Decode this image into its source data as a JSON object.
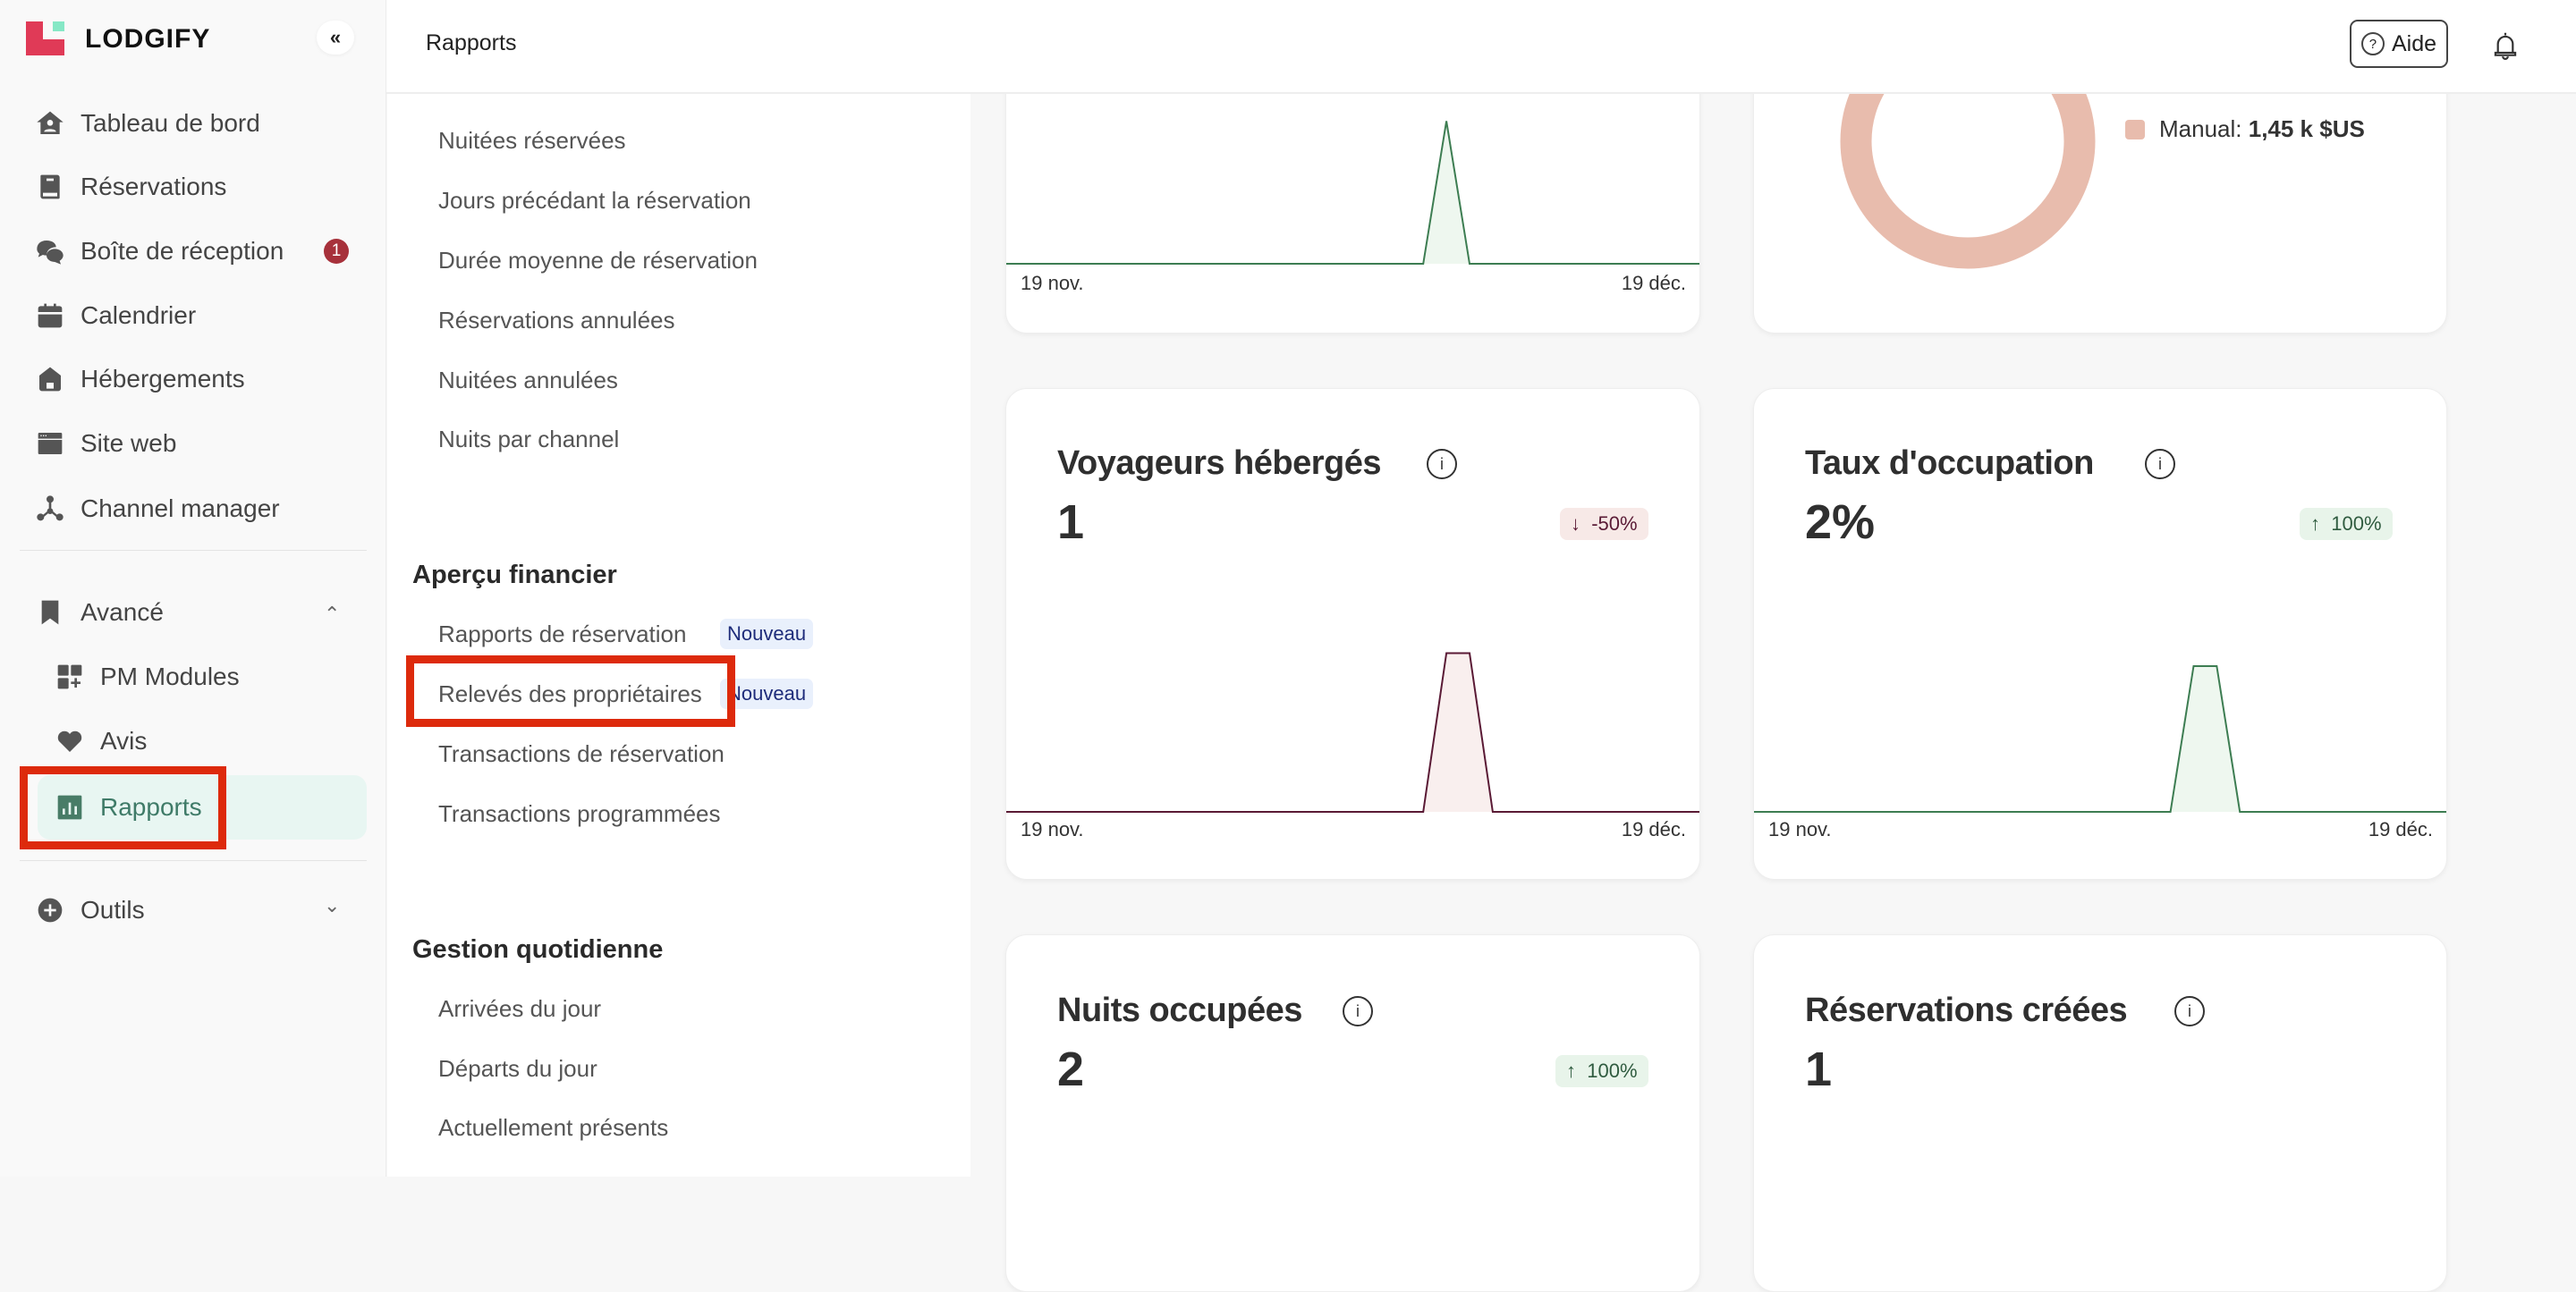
{
  "brand": {
    "name": "LODGIFY",
    "colors": {
      "red": "#e03a57",
      "mint": "#86e8c6"
    }
  },
  "sidebar": {
    "collapse_label": "«",
    "items": [
      {
        "label": "Tableau de bord",
        "icon": "home-icon"
      },
      {
        "label": "Réservations",
        "icon": "book-icon"
      },
      {
        "label": "Boîte de réception",
        "icon": "chat-icon",
        "badge": "1"
      },
      {
        "label": "Calendrier",
        "icon": "calendar-icon"
      },
      {
        "label": "Hébergements",
        "icon": "house-icon"
      },
      {
        "label": "Site web",
        "icon": "browser-icon"
      },
      {
        "label": "Channel manager",
        "icon": "network-icon"
      }
    ],
    "advanced": {
      "label": "Avancé",
      "chevron": "⌃",
      "items": [
        {
          "label": "PM Modules"
        },
        {
          "label": "Avis"
        },
        {
          "label": "Rapports",
          "active": true
        }
      ]
    },
    "tools": {
      "label": "Outils",
      "chevron": "⌄"
    }
  },
  "header": {
    "title": "Rapports",
    "help_label": "Aide",
    "help_icon": "?"
  },
  "submenu": {
    "items_top": [
      "Nuitées réservées",
      "Jours précédant la réservation",
      "Durée moyenne de réservation",
      "Réservations annulées",
      "Nuitées annulées",
      "Nuits par channel"
    ],
    "financial": {
      "title": "Aperçu financier",
      "items": [
        {
          "label": "Rapports de réservation",
          "badge": "Nouveau"
        },
        {
          "label": "Relevés des propriétaires",
          "badge": "Nouveau"
        },
        {
          "label": "Transactions de réservation"
        },
        {
          "label": "Transactions programmées"
        }
      ]
    },
    "daily": {
      "title": "Gestion quotidienne",
      "items": [
        "Arrivées du jour",
        "Départs du jour",
        "Actuellement présents"
      ]
    }
  },
  "cards": {
    "top_left": {
      "x_start": "19 nov.",
      "x_end": "19 déc."
    },
    "donut": {
      "legend_label": "Manual:",
      "legend_value": "1,45 k $US"
    },
    "voyageurs": {
      "title": "Voyageurs hébergés",
      "value": "1",
      "delta": "-50%",
      "delta_arrow": "↓",
      "x_start": "19 nov.",
      "x_end": "19 déc."
    },
    "occupation": {
      "title": "Taux d'occupation",
      "value": "2%",
      "delta": "100%",
      "delta_arrow": "↑",
      "x_start": "19 nov.",
      "x_end": "19 déc."
    },
    "nuits": {
      "title": "Nuits occupées",
      "value": "2",
      "delta": "100%",
      "delta_arrow": "↑"
    },
    "creees": {
      "title": "Réservations créées",
      "value": "1"
    }
  },
  "chart_data": [
    {
      "type": "area",
      "title": "",
      "x_labels": [
        "19 nov.",
        "19 déc."
      ],
      "n_points": 31,
      "values_nonzero": {
        "19": 1
      },
      "ylim": [
        0,
        1.88
      ],
      "color": "#3d7d52",
      "fill": "#eef7ef"
    },
    {
      "type": "pie",
      "slices": [
        {
          "label": "Manual",
          "value": 1450,
          "display": "1,45 k $US",
          "color": "#e8bcad"
        }
      ]
    },
    {
      "type": "area",
      "title": "Voyageurs hébergés",
      "x_labels": [
        "19 nov.",
        "19 déc."
      ],
      "n_points": 31,
      "values_nonzero": {
        "19": 1,
        "20": 1
      },
      "ylim": [
        0,
        1.69
      ],
      "color": "#5a1a35",
      "fill": "#f9efee"
    },
    {
      "type": "area",
      "title": "Taux d'occupation",
      "x_labels": [
        "19 nov.",
        "19 déc."
      ],
      "n_points": 31,
      "values_nonzero": {
        "19": 1,
        "20": 1
      },
      "ylim": [
        0,
        1.84
      ],
      "color": "#3d7d52",
      "fill": "#eef7ef"
    }
  ]
}
